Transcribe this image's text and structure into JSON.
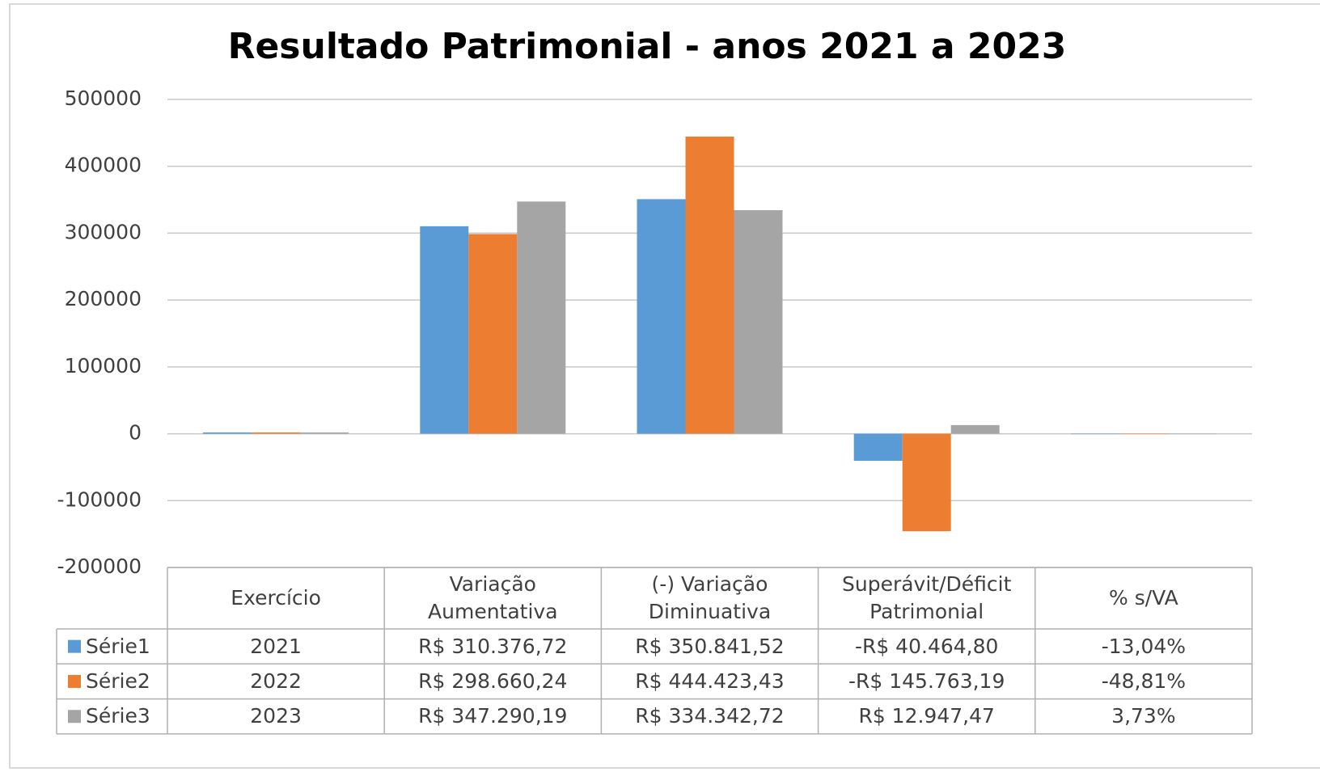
{
  "chart_data": {
    "type": "bar",
    "title": "Resultado Patrimonial - anos 2021 a 2023",
    "categories": [
      "Exercício",
      "Variação Aumentativa",
      "(-) Variação Diminuativa",
      "Superávit/Déficit Patrimonial",
      "% s/VA"
    ],
    "series": [
      {
        "name": "Série1",
        "color": "#5b9bd5",
        "values": [
          2021,
          310376.72,
          350841.52,
          -40464.8,
          -13.04
        ],
        "value_labels": [
          "2021",
          "R$ 310.376,72",
          "R$ 350.841,52",
          "-R$ 40.464,80",
          "-13,04%"
        ]
      },
      {
        "name": "Série2",
        "color": "#ed7d31",
        "values": [
          2022,
          298660.24,
          444423.43,
          -145763.19,
          -48.81
        ],
        "value_labels": [
          "2022",
          "R$ 298.660,24",
          "R$ 444.423,43",
          "-R$ 145.763,19",
          "-48,81%"
        ]
      },
      {
        "name": "Série3",
        "color": "#a5a5a5",
        "values": [
          2023,
          347290.19,
          334342.72,
          12947.47,
          3.73
        ],
        "value_labels": [
          "2023",
          "R$ 347.290,19",
          "R$ 334.342,72",
          "R$ 12.947,47",
          "3,73%"
        ]
      }
    ],
    "ylim": [
      -200000,
      500000
    ],
    "yticks": [
      -200000,
      -100000,
      0,
      100000,
      200000,
      300000,
      400000,
      500000
    ],
    "grid": true
  }
}
